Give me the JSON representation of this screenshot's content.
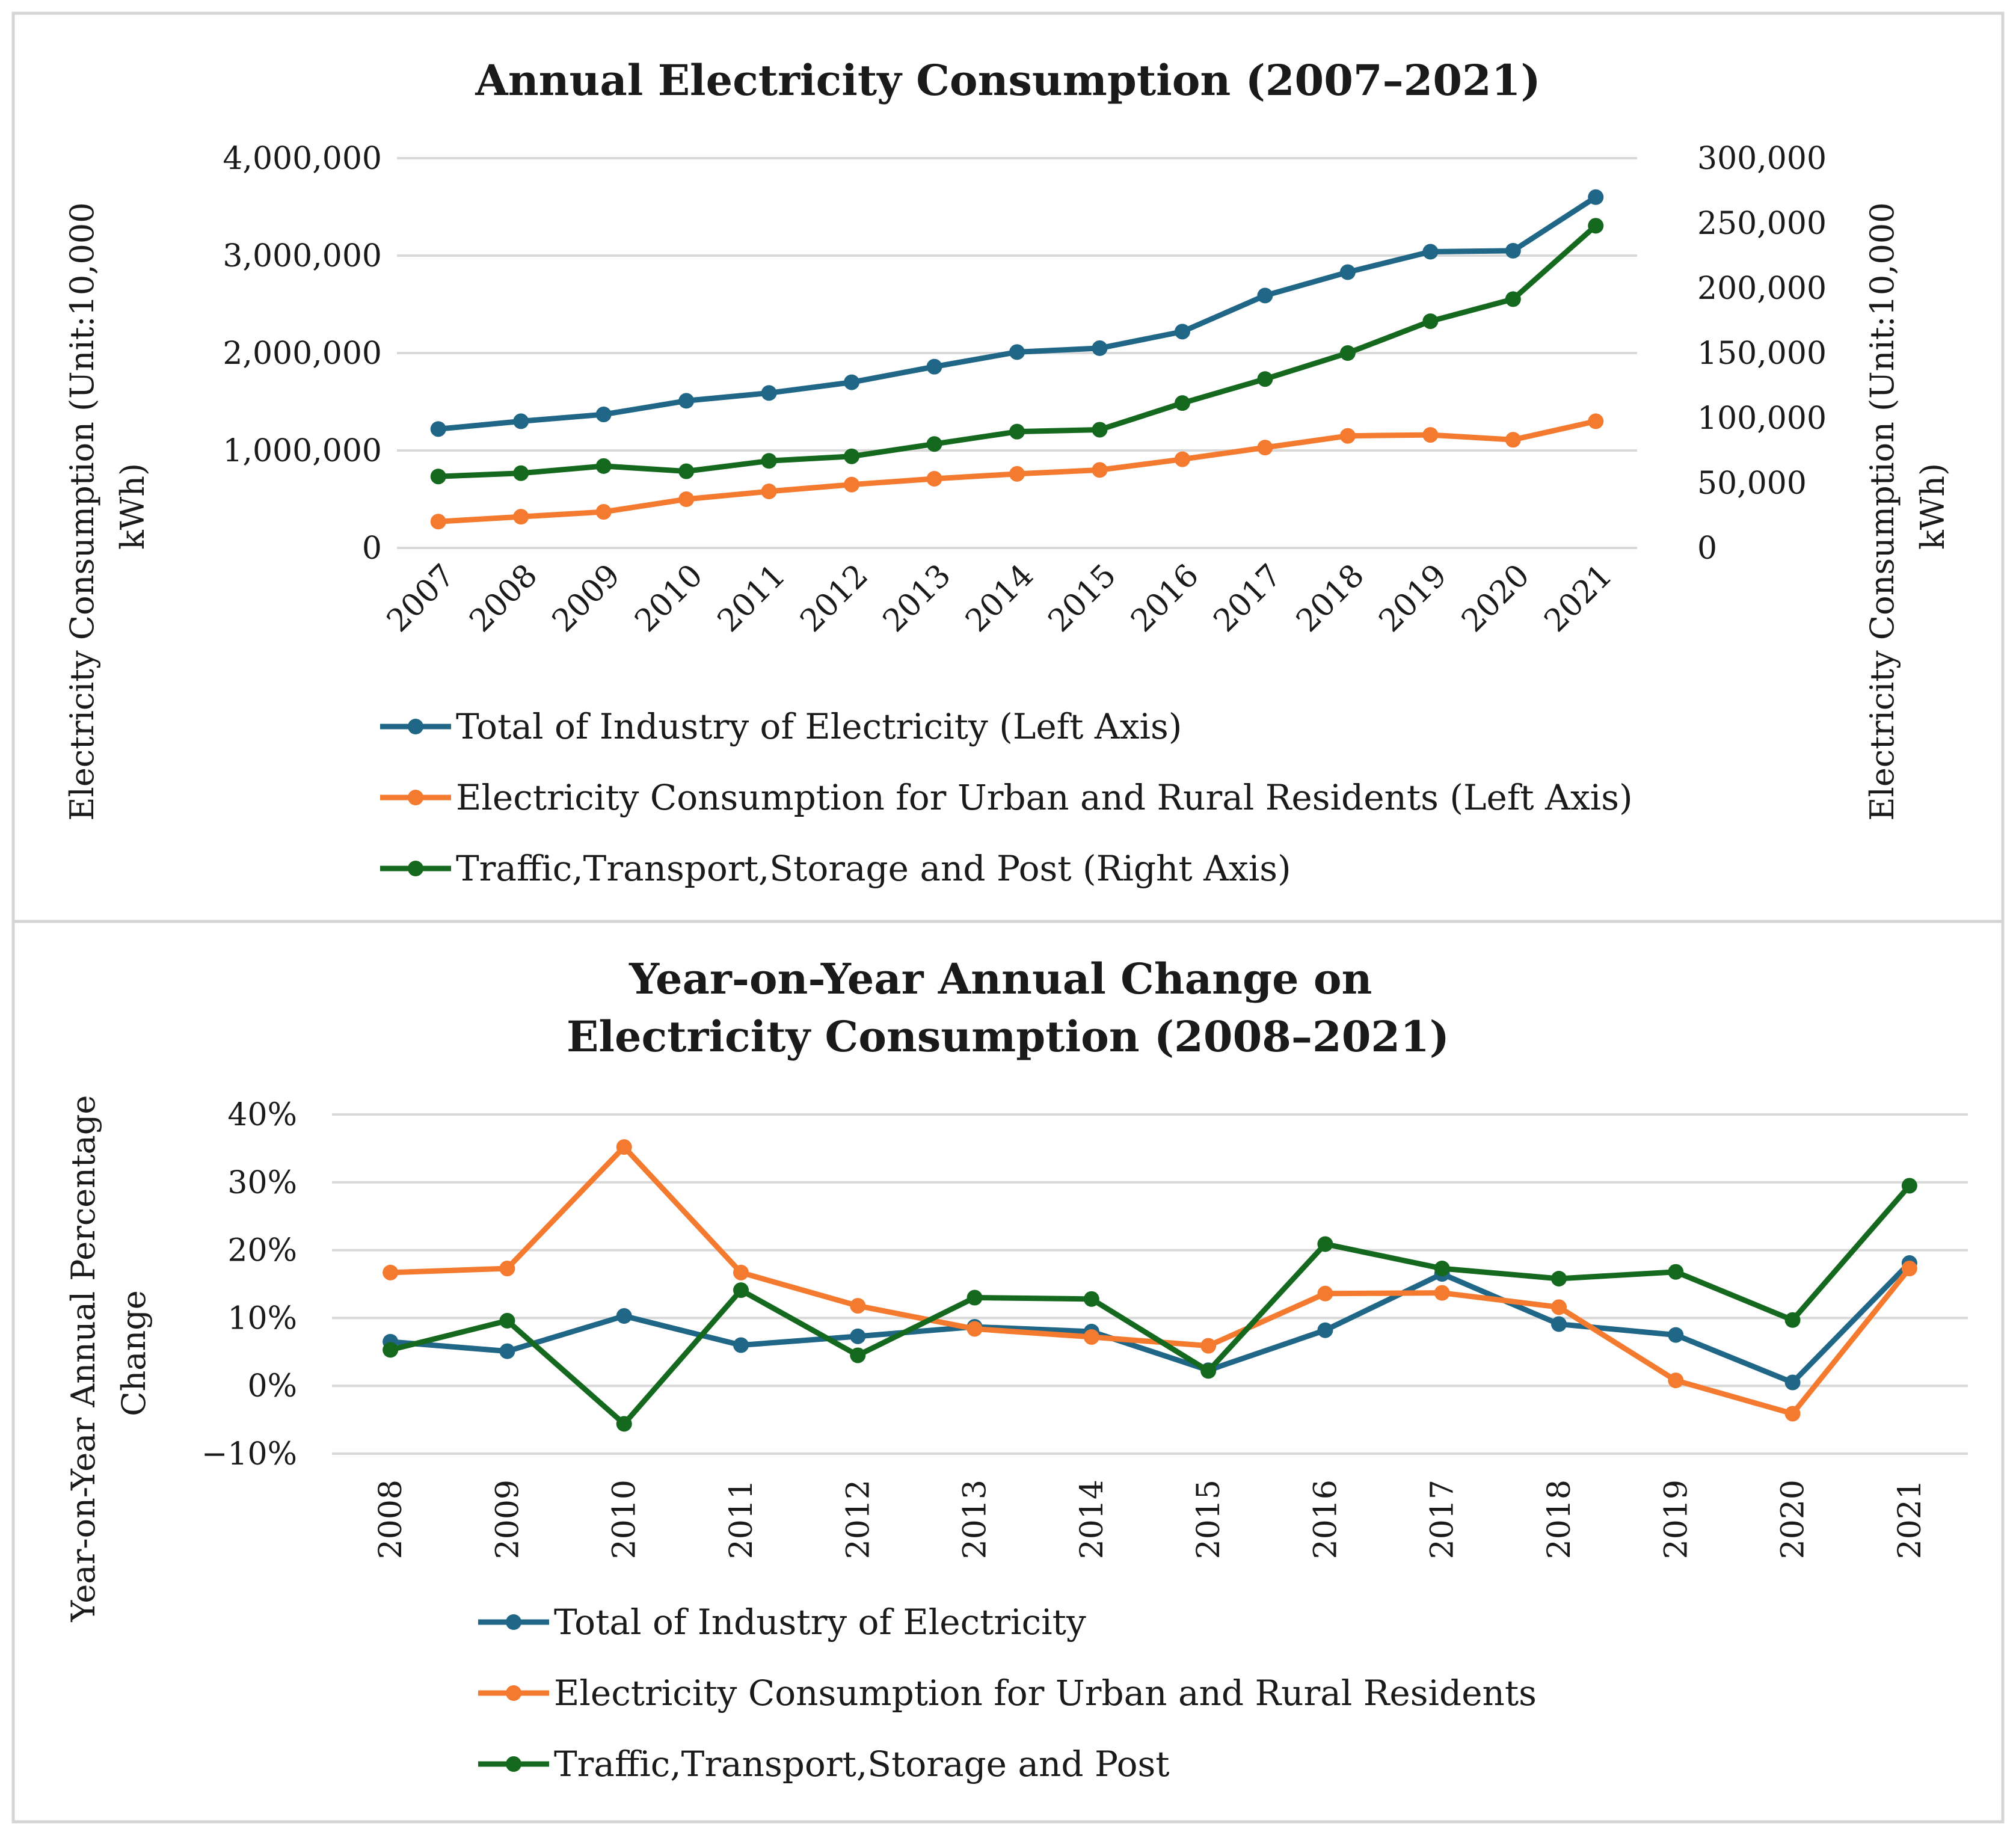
{
  "chart_data": [
    {
      "type": "line",
      "title": "Annual Electricity Consumption (2007–2021)",
      "ylabel_left": "Electricity Consumption (Unit:10,000 kWh)",
      "ylabel_right": "Electricity Consumption (Unit:10,000 kWh)",
      "categories": [
        "2007",
        "2008",
        "2009",
        "2010",
        "2011",
        "2012",
        "2013",
        "2014",
        "2015",
        "2016",
        "2017",
        "2018",
        "2019",
        "2020",
        "2021"
      ],
      "ylim_left": [
        0,
        4000000
      ],
      "ylim_right": [
        0,
        300000
      ],
      "yticks_left": [
        "0",
        "1,000,000",
        "2,000,000",
        "3,000,000",
        "4,000,000"
      ],
      "yticks_right": [
        "0",
        "50,000",
        "100,000",
        "150,000",
        "200,000",
        "250,000",
        "300,000"
      ],
      "grid": true,
      "legend_position": "bottom",
      "series": [
        {
          "name": "Total of Industry of Electricity (Left Axis)",
          "axis": "left",
          "color": "#1f6687",
          "values": [
            1220000,
            1300000,
            1370000,
            1510000,
            1590000,
            1700000,
            1860000,
            2010000,
            2050000,
            2220000,
            2590000,
            2830000,
            3040000,
            3050000,
            3600000
          ]
        },
        {
          "name": "Electricity Consumption for Urban and Rural Residents (Left Axis)",
          "axis": "left",
          "color": "#f47a2f",
          "values": [
            270000,
            320000,
            370000,
            500000,
            580000,
            650000,
            710000,
            760000,
            800000,
            910000,
            1030000,
            1150000,
            1160000,
            1110000,
            1300000
          ]
        },
        {
          "name": "Traffic,Transport,Storage and Post (Right Axis)",
          "axis": "right",
          "color": "#15691e",
          "values": [
            55000,
            57500,
            63000,
            59000,
            67000,
            70500,
            80000,
            89500,
            91000,
            111500,
            130000,
            150000,
            174500,
            191500,
            248000
          ]
        }
      ]
    },
    {
      "type": "line",
      "title_lines": [
        "Year-on-Year Annual Change on",
        "Electricity Consumption (2008–2021)"
      ],
      "ylabel_lines": [
        "Year-on-Year Annual Percentage",
        "Change"
      ],
      "categories": [
        "2008",
        "2009",
        "2010",
        "2011",
        "2012",
        "2013",
        "2014",
        "2015",
        "2016",
        "2017",
        "2018",
        "2019",
        "2020",
        "2021"
      ],
      "ylim": [
        -10,
        40
      ],
      "yticks": [
        "−10%",
        "0%",
        "10%",
        "20%",
        "30%",
        "40%"
      ],
      "grid": true,
      "legend_position": "bottom",
      "series": [
        {
          "name": "Total of Industry of Electricity",
          "color": "#1f6687",
          "values": [
            6.5,
            5.1,
            10.3,
            6.0,
            7.3,
            8.7,
            8.0,
            2.3,
            8.2,
            16.5,
            9.1,
            7.5,
            0.5,
            18.1
          ]
        },
        {
          "name": "Electricity Consumption for Urban and Rural Residents",
          "color": "#f47a2f",
          "values": [
            16.7,
            17.3,
            35.2,
            16.7,
            11.8,
            8.4,
            7.2,
            5.9,
            13.6,
            13.7,
            11.6,
            0.8,
            -4.1,
            17.3
          ]
        },
        {
          "name": "Traffic,Transport,Storage and Post",
          "color": "#15691e",
          "values": [
            5.3,
            9.6,
            -5.6,
            14.1,
            4.5,
            13.0,
            12.8,
            2.2,
            20.9,
            17.3,
            15.8,
            16.8,
            9.7,
            29.5
          ]
        }
      ]
    }
  ]
}
